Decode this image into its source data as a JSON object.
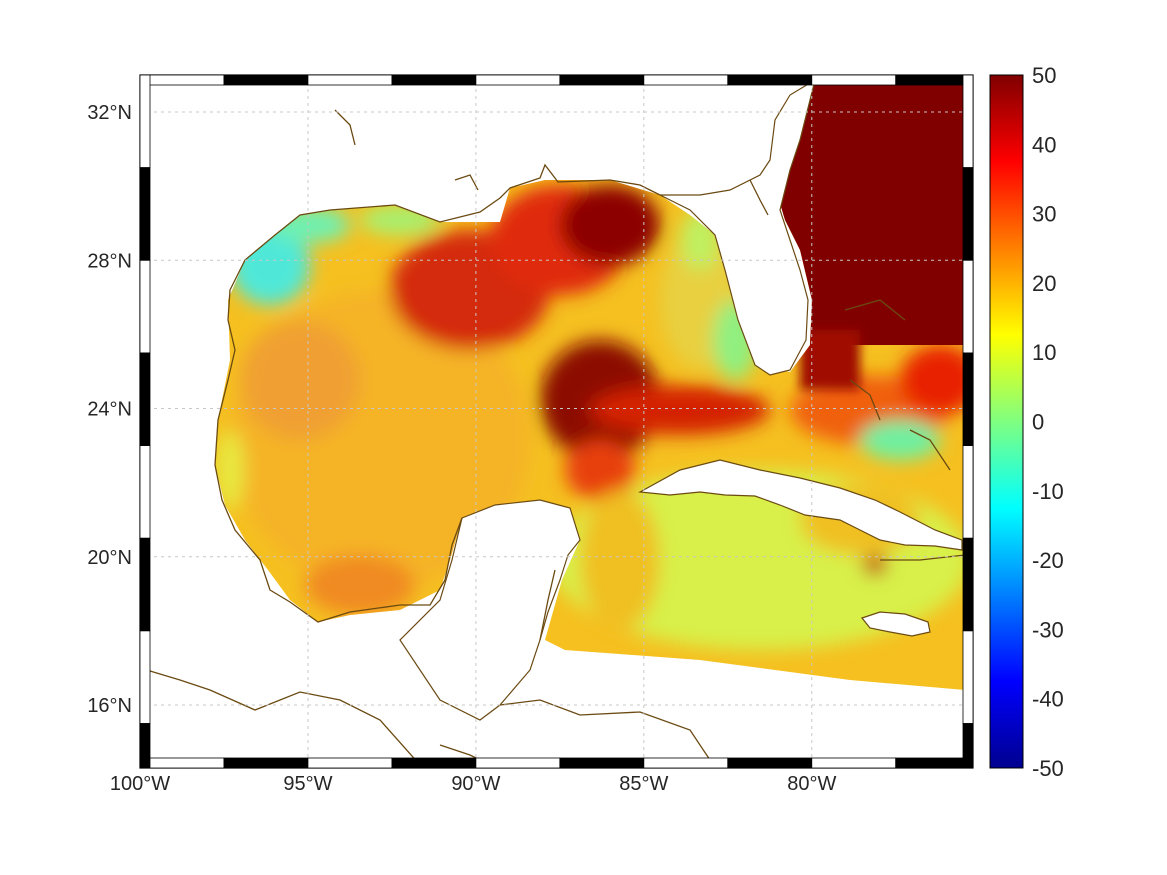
{
  "map": {
    "lat_ticks": [
      "32°N",
      "28°N",
      "24°N",
      "20°N",
      "16°N"
    ],
    "lon_ticks": [
      "100°W",
      "95°W",
      "90°W",
      "85°W",
      "80°W"
    ],
    "lat_values": [
      32,
      28,
      24,
      20,
      16
    ],
    "lon_values": [
      -100,
      -95,
      -90,
      -85,
      -80
    ],
    "lat_range": [
      14.3,
      33.0
    ],
    "lon_range": [
      -100,
      -75.2
    ],
    "gridlines": true,
    "coastline_color": "#6b4a12"
  },
  "colorbar": {
    "ticks": [
      "50",
      "40",
      "30",
      "20",
      "10",
      "0",
      "-10",
      "-20",
      "-30",
      "-40",
      "-50"
    ],
    "range": [
      -50,
      50
    ],
    "colormap": "jet"
  },
  "colors": {
    "dark_red": "#800000",
    "red": "#d42000",
    "orange": "#f59a00",
    "yellow": "#f5d800",
    "yellow_green": "#d8f040",
    "cyan": "#40e0d8"
  }
}
